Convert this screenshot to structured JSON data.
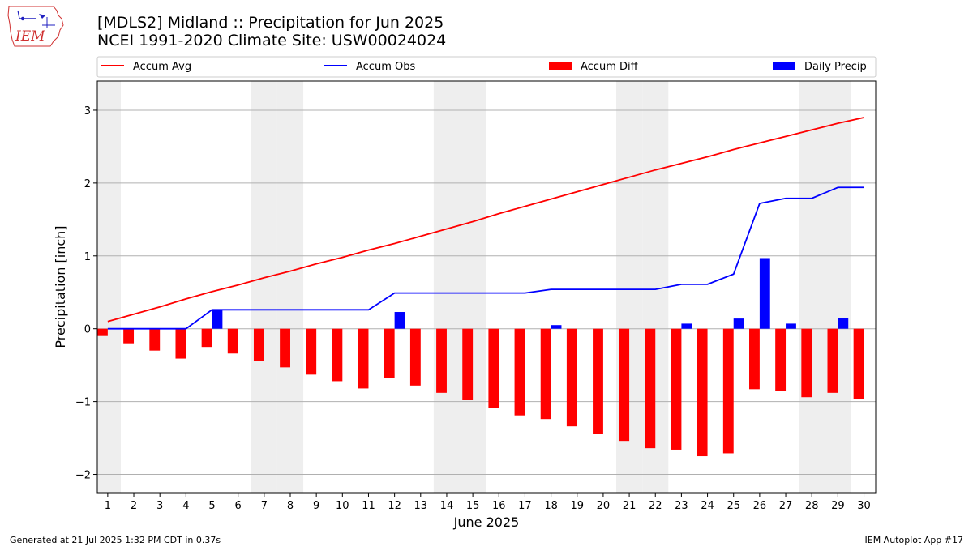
{
  "logo": {
    "text": "IEM"
  },
  "title_line1": "[MDLS2] Midland :: Precipitation for Jun 2025",
  "title_line2": "NCEI 1991-2020 Climate Site: USW00024024",
  "footer_left": "Generated at 21 Jul 2025 1:32 PM CDT in 0.37s",
  "footer_right": "IEM Autoplot App #17",
  "colors": {
    "avg": "#ff0000",
    "obs": "#0000ff",
    "diff": "#ff0000",
    "daily": "#0000ff",
    "weekend_shade": "#eeeeee",
    "grid": "#b0b0b0"
  },
  "chart_data": {
    "type": "bar",
    "xlabel": "June 2025",
    "ylabel": "Precipitation [inch]",
    "ylim": [
      -2.25,
      3.4
    ],
    "yticks": [
      3,
      2,
      1,
      0,
      -1,
      -2
    ],
    "ytick_labels": [
      "3",
      "2",
      "1",
      "0",
      "−1",
      "−2"
    ],
    "grid": true,
    "legend_position": "top",
    "categories": [
      "1",
      "2",
      "3",
      "4",
      "5",
      "6",
      "7",
      "8",
      "9",
      "10",
      "11",
      "12",
      "13",
      "14",
      "15",
      "16",
      "17",
      "18",
      "19",
      "20",
      "21",
      "22",
      "23",
      "24",
      "25",
      "26",
      "27",
      "28",
      "29",
      "30"
    ],
    "weekend_days": [
      1,
      7,
      8,
      14,
      15,
      21,
      22,
      28,
      29
    ],
    "series": [
      {
        "name": "Accum Avg",
        "kind": "line",
        "values": [
          0.1,
          0.2,
          0.3,
          0.41,
          0.51,
          0.6,
          0.7,
          0.79,
          0.89,
          0.98,
          1.08,
          1.17,
          1.27,
          1.37,
          1.47,
          1.58,
          1.68,
          1.78,
          1.88,
          1.98,
          2.08,
          2.18,
          2.27,
          2.36,
          2.46,
          2.55,
          2.64,
          2.73,
          2.82,
          2.9
        ]
      },
      {
        "name": "Accum Obs",
        "kind": "line",
        "values": [
          0.0,
          0.0,
          0.0,
          0.0,
          0.26,
          0.26,
          0.26,
          0.26,
          0.26,
          0.26,
          0.26,
          0.49,
          0.49,
          0.49,
          0.49,
          0.49,
          0.49,
          0.54,
          0.54,
          0.54,
          0.54,
          0.54,
          0.61,
          0.61,
          0.75,
          1.72,
          1.79,
          1.79,
          1.94,
          1.94
        ]
      },
      {
        "name": "Accum Diff",
        "kind": "bar",
        "values": [
          -0.1,
          -0.2,
          -0.3,
          -0.41,
          -0.25,
          -0.34,
          -0.44,
          -0.53,
          -0.63,
          -0.72,
          -0.82,
          -0.68,
          -0.78,
          -0.88,
          -0.98,
          -1.09,
          -1.19,
          -1.24,
          -1.34,
          -1.44,
          -1.54,
          -1.64,
          -1.66,
          -1.75,
          -1.71,
          -0.83,
          -0.85,
          -0.94,
          -0.88,
          -0.96
        ]
      },
      {
        "name": "Daily Precip",
        "kind": "bar",
        "values": [
          0,
          0,
          0,
          0,
          0.26,
          0,
          0,
          0,
          0,
          0,
          0,
          0.23,
          0,
          0,
          0,
          0,
          0,
          0.05,
          0,
          0,
          0,
          0,
          0.07,
          0,
          0.14,
          0.97,
          0.07,
          0,
          0.15,
          0
        ]
      }
    ]
  }
}
